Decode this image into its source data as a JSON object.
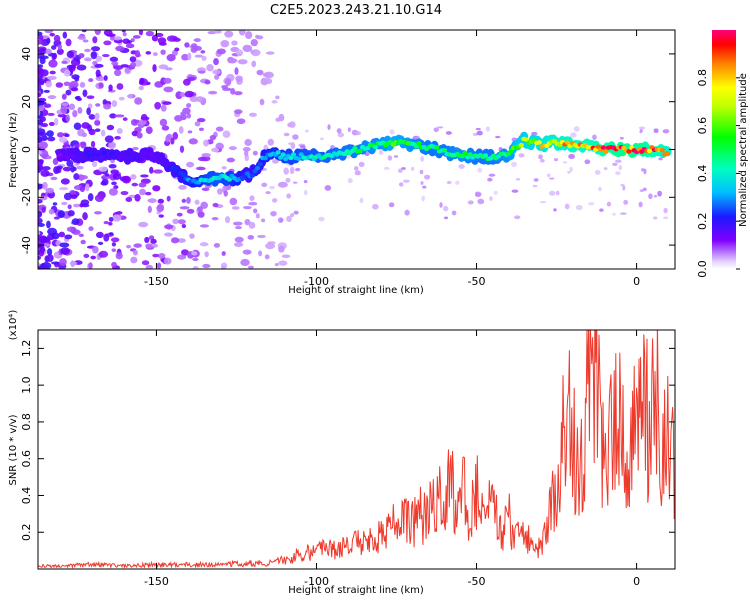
{
  "figure": {
    "title": "C2E5.2023.243.21.10.G14"
  },
  "colors": {
    "snr_line": "#ee3a2c",
    "ridge_low": "#7f00ff",
    "ridge_high": "#ff0050"
  },
  "chart_data": [
    {
      "type": "heatmap",
      "title": "C2E5.2023.243.21.10.G14",
      "xlabel": "Height of straight line (km)",
      "ylabel": "Frequency (Hz)",
      "xlim": [
        -187,
        12
      ],
      "ylim": [
        -50,
        50
      ],
      "xticks": [
        -150,
        -100,
        -50,
        0
      ],
      "xtick_labels": [
        "-150",
        "-100",
        "-50",
        "0"
      ],
      "yticks": [
        -40,
        -20,
        0,
        20,
        40
      ],
      "ytick_labels": [
        "-40",
        "-20",
        "0",
        "20",
        "40"
      ],
      "colorbar": {
        "label": "Normalized spectral amplitude",
        "range": [
          0.0,
          1.0
        ],
        "ticks": [
          0.0,
          0.2,
          0.4,
          0.6,
          0.8
        ],
        "tick_labels": [
          "0.0",
          "0.2",
          "0.4",
          "0.6",
          "0.8"
        ]
      },
      "ridge": {
        "description_free": true,
        "x": [
          -180,
          -170,
          -160,
          -150,
          -140,
          -135,
          -130,
          -125,
          -120,
          -115,
          -110,
          -100,
          -90,
          -80,
          -75,
          -70,
          -65,
          -60,
          -55,
          -50,
          -45,
          -40,
          -35,
          -30,
          -25,
          -20,
          -15,
          -10,
          -5,
          0,
          5,
          10
        ],
        "y": [
          -3,
          -2,
          -3,
          -2,
          -13,
          -13,
          -12,
          -12,
          -10,
          -1,
          -3,
          -3,
          -1,
          2,
          3,
          2,
          1,
          -1,
          -2,
          -3,
          -3,
          -2,
          4,
          2,
          3,
          2,
          1,
          0,
          0,
          0,
          0,
          -2
        ],
        "amplitude": [
          0.15,
          0.2,
          0.2,
          0.15,
          0.3,
          0.4,
          0.45,
          0.35,
          0.25,
          0.35,
          0.4,
          0.45,
          0.5,
          0.55,
          0.6,
          0.55,
          0.5,
          0.5,
          0.55,
          0.5,
          0.5,
          0.55,
          0.7,
          0.8,
          0.85,
          0.9,
          0.9,
          0.95,
          1.0,
          1.0,
          0.95,
          0.85
        ]
      }
    },
    {
      "type": "line",
      "xlabel": "Height of straight line (km)",
      "ylabel": "SNR (10 * v/v)",
      "y_multiplier_label": "(x10⁴)",
      "xlim": [
        -187,
        12
      ],
      "ylim": [
        0,
        1.3
      ],
      "xticks": [
        -150,
        -100,
        -50,
        0
      ],
      "xtick_labels": [
        "-150",
        "-100",
        "-50",
        "0"
      ],
      "yticks": [
        0.2,
        0.4,
        0.6,
        0.8,
        1.0,
        1.2
      ],
      "ytick_labels": [
        "0.2",
        "0.4",
        "0.6",
        "0.8",
        "1.0",
        "1.2"
      ],
      "series": [
        {
          "x": [
            -187,
            -180,
            -170,
            -160,
            -150,
            -140,
            -130,
            -120,
            -115,
            -110,
            -105,
            -100,
            -95,
            -90,
            -85,
            -80,
            -75,
            -70,
            -65,
            -60,
            -58,
            -56,
            -54,
            -52,
            -50,
            -48,
            -45,
            -42,
            -40,
            -38,
            -35,
            -32,
            -30,
            -28,
            -26,
            -24,
            -22,
            -20,
            -18,
            -16,
            -14,
            -12,
            -10,
            -8,
            -6,
            -4,
            -2,
            0,
            2,
            4,
            6,
            8,
            10,
            12
          ],
          "y": [
            0.02,
            0.02,
            0.03,
            0.02,
            0.03,
            0.03,
            0.03,
            0.04,
            0.04,
            0.06,
            0.1,
            0.12,
            0.14,
            0.16,
            0.18,
            0.25,
            0.3,
            0.32,
            0.4,
            0.48,
            0.62,
            0.3,
            0.68,
            0.35,
            0.6,
            0.3,
            0.45,
            0.22,
            0.35,
            0.2,
            0.25,
            0.12,
            0.15,
            0.3,
            0.45,
            0.6,
            1.25,
            0.9,
            0.7,
            1.0,
            1.2,
            1.3,
            0.6,
            0.9,
            1.0,
            0.85,
            0.9,
            0.88,
            1.05,
            1.0,
            1.18,
            0.95,
            1.1,
            0.55
          ]
        }
      ]
    }
  ]
}
